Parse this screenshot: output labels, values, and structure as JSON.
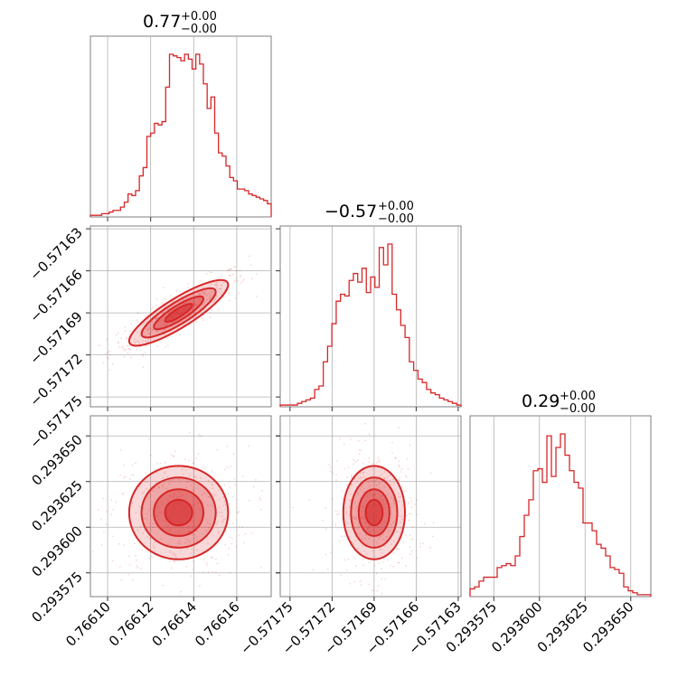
{
  "chart_data": {
    "type": "corner",
    "color": "#d62728",
    "grid": true,
    "parameters": [
      {
        "title_value": "0.77",
        "title_plus": "+0.00",
        "title_minus": "−0.00",
        "lim": [
          0.766092,
          0.766176
        ],
        "ticks": [
          0.7661,
          0.76612,
          0.76614,
          0.76616
        ],
        "tick_labels": [
          "0.76610",
          "0.76612",
          "0.76614",
          "0.76616"
        ]
      },
      {
        "title_value": "−0.57",
        "title_plus": "+0.00",
        "title_minus": "−0.00",
        "lim": [
          -0.571757,
          -0.571628
        ],
        "ticks": [
          -0.57175,
          -0.57172,
          -0.57169,
          -0.57166,
          -0.57163
        ],
        "tick_labels": [
          "−0.57175",
          "−0.57172",
          "−0.57169",
          "−0.57166",
          "−0.57163"
        ]
      },
      {
        "title_value": "0.29",
        "title_plus": "+0.00",
        "title_minus": "−0.00",
        "lim": [
          0.293562,
          0.293661
        ],
        "ticks": [
          0.293575,
          0.2936,
          0.293625,
          0.29365
        ],
        "tick_labels": [
          "0.293575",
          "0.293600",
          "0.293625",
          "0.293650"
        ]
      }
    ],
    "histograms": [
      {
        "counts": [
          1,
          1,
          1,
          2,
          2,
          3,
          4,
          4,
          6,
          9,
          14,
          13,
          16,
          25,
          30,
          49,
          51,
          57,
          56,
          58,
          79,
          99,
          98,
          97,
          95,
          99,
          96,
          90,
          99,
          93,
          81,
          66,
          73,
          51,
          39,
          37,
          31,
          24,
          22,
          17,
          17,
          16,
          14,
          13,
          12,
          11,
          10,
          8
        ]
      },
      {
        "counts": [
          1,
          1,
          1,
          1,
          2,
          3,
          4,
          5,
          10,
          12,
          26,
          35,
          48,
          61,
          65,
          64,
          73,
          77,
          72,
          80,
          66,
          75,
          69,
          92,
          82,
          94,
          65,
          56,
          47,
          40,
          26,
          21,
          16,
          14,
          10,
          8,
          7,
          5,
          4,
          3,
          2,
          1
        ]
      },
      {
        "counts": [
          4,
          5,
          8,
          10,
          10,
          10,
          15,
          16,
          17,
          16,
          21,
          31,
          42,
          50,
          65,
          66,
          59,
          83,
          62,
          77,
          84,
          73,
          65,
          59,
          56,
          38,
          38,
          34,
          27,
          25,
          21,
          15,
          14,
          12,
          5,
          3,
          2,
          1,
          1,
          1
        ]
      }
    ]
  }
}
